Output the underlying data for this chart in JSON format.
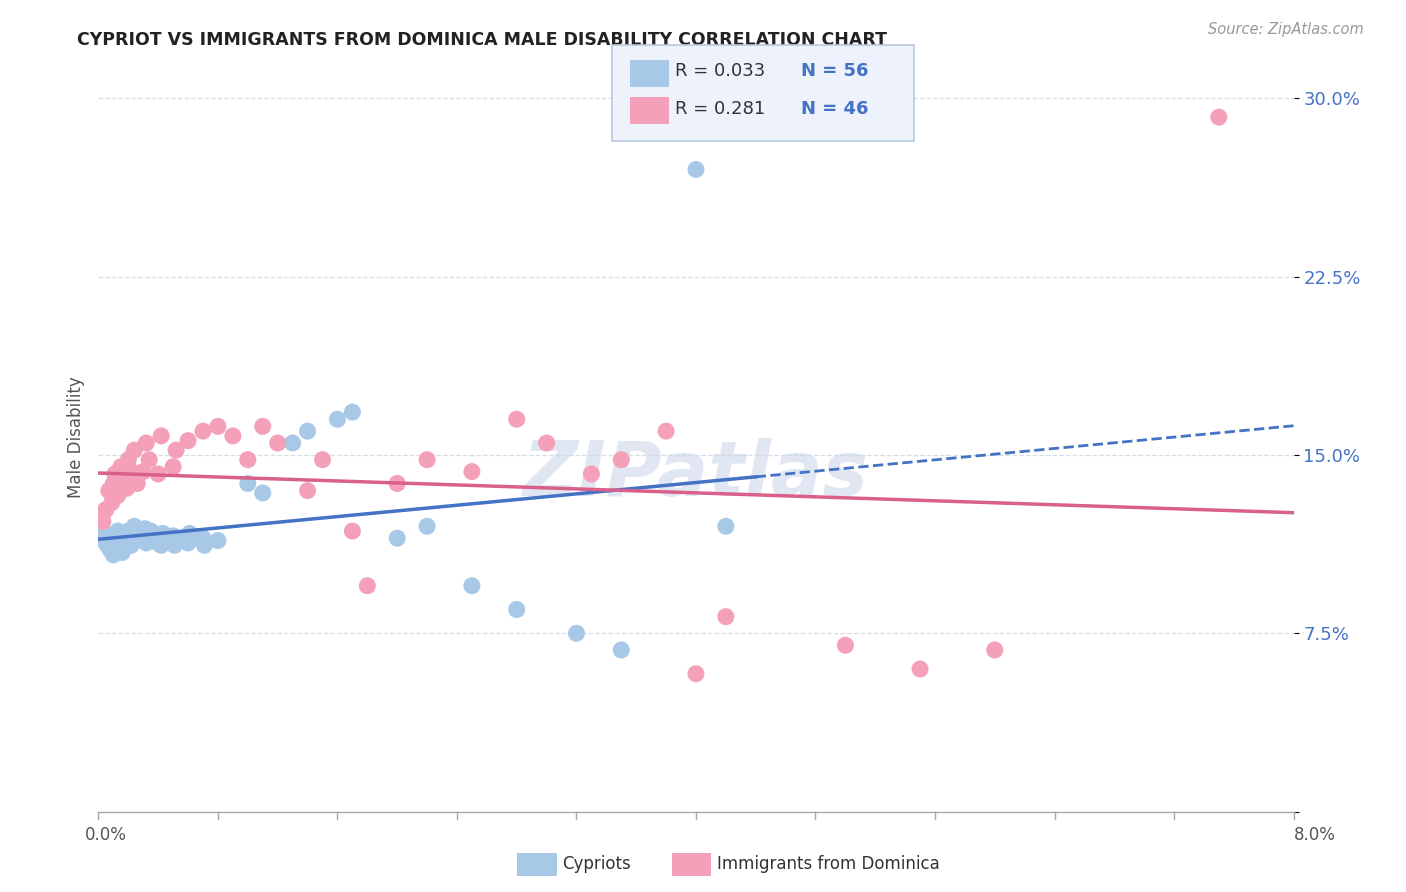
{
  "title": "CYPRIOT VS IMMIGRANTS FROM DOMINICA MALE DISABILITY CORRELATION CHART",
  "source": "Source: ZipAtlas.com",
  "ylabel": "Male Disability",
  "yticks": [
    0.0,
    0.075,
    0.15,
    0.225,
    0.3
  ],
  "ytick_labels": [
    "",
    "7.5%",
    "15.0%",
    "22.5%",
    "30.0%"
  ],
  "xmin": 0.0,
  "xmax": 0.08,
  "ymin": 0.0,
  "ymax": 0.315,
  "cypriot_color": "#a8c8e8",
  "dominica_color": "#f4a0b8",
  "cypriot_line_color": "#4472c4",
  "dominica_line_color": "#d9608a",
  "R_cypriot": 0.033,
  "N_cypriot": 56,
  "R_dominica": 0.281,
  "N_dominica": 46,
  "cypriot_x": [
    0.0002,
    0.0003,
    0.0004,
    0.0005,
    0.0006,
    0.0007,
    0.0008,
    0.0009,
    0.001,
    0.0011,
    0.0012,
    0.0013,
    0.0014,
    0.0015,
    0.0016,
    0.0018,
    0.002,
    0.0021,
    0.0022,
    0.0023,
    0.0024,
    0.0025,
    0.0026,
    0.003,
    0.0031,
    0.0032,
    0.0033,
    0.0034,
    0.0035,
    0.004,
    0.0041,
    0.0042,
    0.0043,
    0.0044,
    0.005,
    0.0051,
    0.0052,
    0.006,
    0.0061,
    0.007,
    0.0071,
    0.008,
    0.01,
    0.011,
    0.013,
    0.014,
    0.016,
    0.017,
    0.02,
    0.022,
    0.025,
    0.028,
    0.032,
    0.035,
    0.04,
    0.042
  ],
  "cypriot_y": [
    0.122,
    0.118,
    0.115,
    0.113,
    0.112,
    0.114,
    0.11,
    0.111,
    0.108,
    0.116,
    0.112,
    0.118,
    0.113,
    0.115,
    0.109,
    0.114,
    0.118,
    0.115,
    0.112,
    0.117,
    0.12,
    0.114,
    0.116,
    0.115,
    0.119,
    0.113,
    0.116,
    0.114,
    0.118,
    0.113,
    0.115,
    0.112,
    0.117,
    0.114,
    0.116,
    0.112,
    0.115,
    0.113,
    0.117,
    0.115,
    0.112,
    0.114,
    0.138,
    0.134,
    0.155,
    0.16,
    0.165,
    0.168,
    0.115,
    0.12,
    0.095,
    0.085,
    0.075,
    0.068,
    0.27,
    0.12
  ],
  "dominica_x": [
    0.0003,
    0.0005,
    0.0007,
    0.0009,
    0.001,
    0.0011,
    0.0013,
    0.0015,
    0.0017,
    0.0019,
    0.002,
    0.0022,
    0.0024,
    0.0026,
    0.003,
    0.0032,
    0.0034,
    0.004,
    0.0042,
    0.005,
    0.0052,
    0.006,
    0.007,
    0.008,
    0.009,
    0.01,
    0.011,
    0.012,
    0.014,
    0.015,
    0.017,
    0.018,
    0.02,
    0.022,
    0.025,
    0.028,
    0.03,
    0.033,
    0.035,
    0.038,
    0.04,
    0.042,
    0.05,
    0.055,
    0.06,
    0.075
  ],
  "dominica_y": [
    0.122,
    0.127,
    0.135,
    0.13,
    0.138,
    0.142,
    0.133,
    0.145,
    0.14,
    0.136,
    0.148,
    0.143,
    0.152,
    0.138,
    0.143,
    0.155,
    0.148,
    0.142,
    0.158,
    0.145,
    0.152,
    0.156,
    0.16,
    0.162,
    0.158,
    0.148,
    0.162,
    0.155,
    0.135,
    0.148,
    0.118,
    0.095,
    0.138,
    0.148,
    0.143,
    0.165,
    0.155,
    0.142,
    0.148,
    0.16,
    0.058,
    0.082,
    0.07,
    0.06,
    0.068,
    0.292
  ],
  "legend_box_color": "#eef2fc",
  "legend_border_color": "#b8c8e0",
  "watermark_color": "#ccd8ea",
  "background_color": "#ffffff",
  "grid_color": "#d5dde5"
}
